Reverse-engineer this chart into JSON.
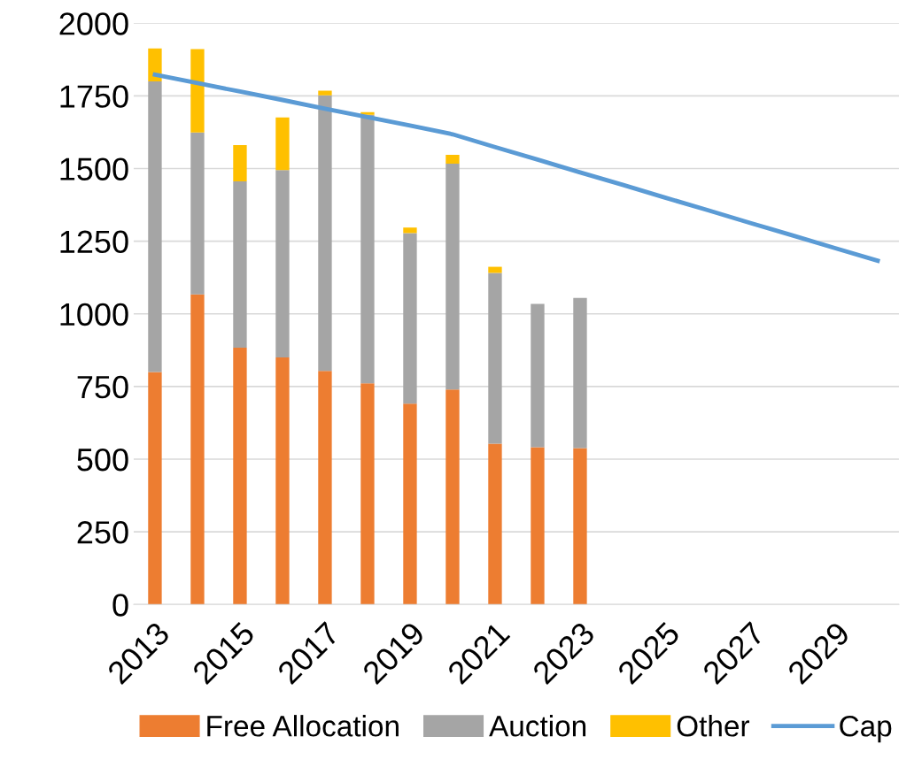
{
  "chart_data": {
    "type": "bar",
    "stacked": true,
    "categories": [
      "2013",
      null,
      "2015",
      null,
      "2017",
      null,
      "2019",
      null,
      "2021",
      null,
      "2023",
      null,
      "2025",
      null,
      "2027",
      null,
      "2029",
      null
    ],
    "series": [
      {
        "name": "Free Allocation",
        "color": "#ed7d31",
        "values": [
          800,
          1067,
          884,
          850,
          804,
          761,
          691,
          740,
          553,
          541,
          538,
          null,
          null,
          null,
          null,
          null,
          null,
          null
        ]
      },
      {
        "name": "Auction",
        "color": "#a5a5a5",
        "values": [
          1000,
          557,
          572,
          645,
          948,
          924,
          587,
          777,
          588,
          493,
          517,
          null,
          null,
          null,
          null,
          null,
          null,
          null
        ]
      },
      {
        "name": "Other",
        "color": "#ffc000",
        "values": [
          113,
          287,
          125,
          181,
          16,
          9,
          19,
          30,
          21,
          null,
          null,
          null,
          null,
          null,
          null,
          null,
          null,
          null
        ]
      },
      {
        "name": "Cap",
        "color": "#5b9bd5",
        "type": "line",
        "values": [
          1823,
          1794,
          1765,
          1736,
          1706,
          1677,
          1648,
          1618,
          1574,
          1531,
          1487,
          1444,
          1400,
          1357,
          1313,
          1270,
          1226,
          1183
        ]
      }
    ],
    "ylim": [
      0,
      2000
    ],
    "yticks": [
      0,
      250,
      500,
      750,
      1000,
      1250,
      1500,
      1750,
      2000
    ],
    "grid": "y",
    "legend": "bottom"
  }
}
